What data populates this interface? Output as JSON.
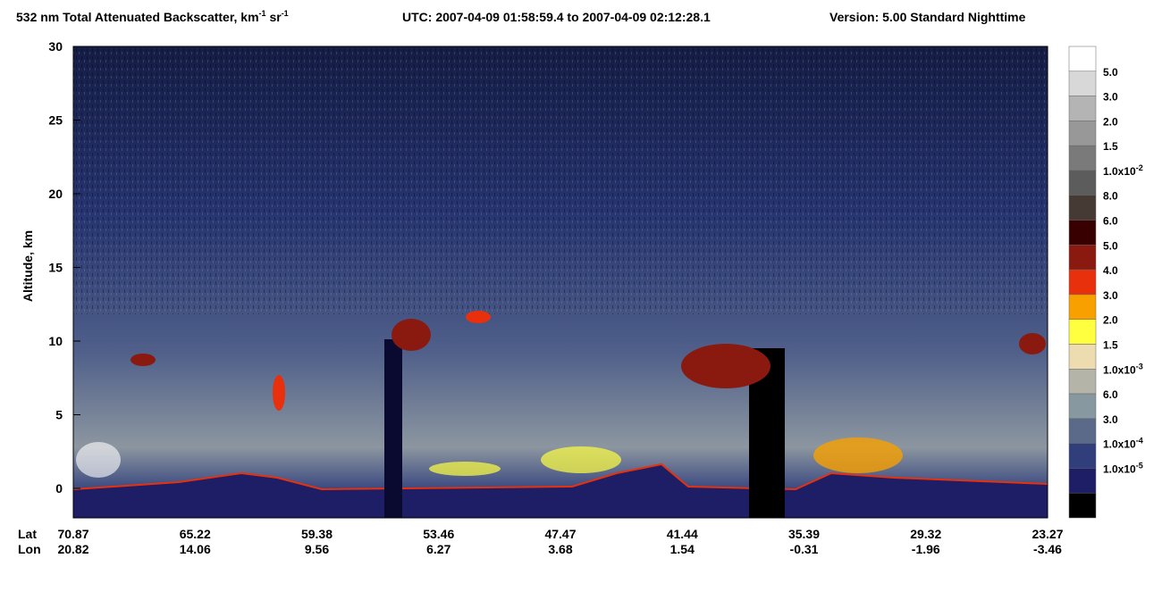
{
  "chart_data": {
    "type": "curtain",
    "title_parts": [
      "532 nm Total Attenuated Backscatter, km",
      "-1",
      " sr",
      "-1"
    ],
    "utc": "UTC:  2007-04-09 01:58:59.4  to  2007-04-09 02:12:28.1",
    "version": "Version: 5.00  Standard  Nighttime",
    "y_label": "Altitude, km",
    "ylim": [
      -2,
      30
    ],
    "yticks": [
      0,
      5,
      10,
      15,
      20,
      25,
      30
    ],
    "x_rows": [
      {
        "name": "Lat",
        "labels": [
          "70.87",
          "65.22",
          "59.38",
          "53.46",
          "47.47",
          "41.44",
          "35.39",
          "29.32",
          "23.27"
        ]
      },
      {
        "name": "Lon",
        "labels": [
          "20.82",
          "14.06",
          "9.56",
          "6.27",
          "3.68",
          "1.54",
          "-0.31",
          "-1.96",
          "-3.46"
        ]
      }
    ],
    "colorbar": {
      "colors": [
        "#ffffff",
        "#d8d8d8",
        "#b4b4b4",
        "#989898",
        "#7a7a7a",
        "#5c5c5c",
        "#463a34",
        "#380000",
        "#8a1a10",
        "#e8300c",
        "#f8a000",
        "#ffff40",
        "#ecdcb0",
        "#b4b4a8",
        "#8898a0",
        "#5a6a88",
        "#303f7c",
        "#1e1e66",
        "#000000"
      ],
      "labels": [
        {
          "text": "5.0"
        },
        {
          "text": "3.0"
        },
        {
          "text": "2.0"
        },
        {
          "text": "1.5"
        },
        {
          "text": "1.0x10",
          "sup": "-2"
        },
        {
          "text": "8.0"
        },
        {
          "text": "6.0"
        },
        {
          "text": "5.0"
        },
        {
          "text": "4.0"
        },
        {
          "text": "3.0"
        },
        {
          "text": "2.0"
        },
        {
          "text": "1.5"
        },
        {
          "text": "1.0x10",
          "sup": "-3"
        },
        {
          "text": "6.0"
        },
        {
          "text": "3.0"
        },
        {
          "text": "1.0x10",
          "sup": "-4"
        },
        {
          "text": "1.0x10",
          "sup": "-5"
        }
      ]
    }
  }
}
